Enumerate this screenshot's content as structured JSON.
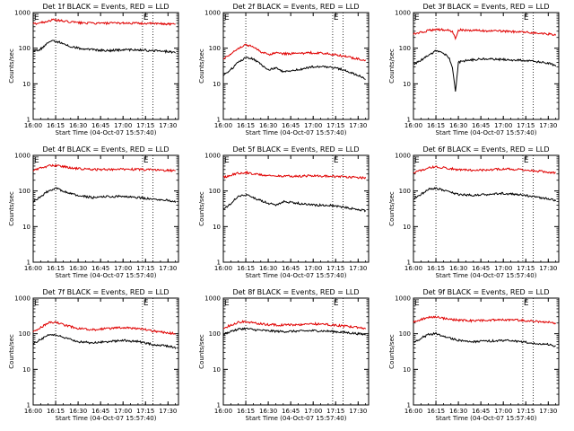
{
  "figure": {
    "background": "#ffffff",
    "colors": {
      "events": "#000000",
      "lld": "#e00000",
      "axis": "#000000"
    }
  },
  "chart_data": [
    {
      "type": "line",
      "title": "Det 1f BLACK = Events, RED = LLD",
      "xlabel": "Start Time (04-Oct-07 15:57:40)",
      "ylabel": "Counts/sec",
      "xlim": [
        "16:00",
        "17:37"
      ],
      "ylim": [
        1,
        1000
      ],
      "yscale": "log",
      "xticks": [
        "16:00",
        "16:15",
        "16:30",
        "16:45",
        "17:00",
        "17:15",
        "17:30"
      ],
      "yticks": [
        "1",
        "10",
        "100",
        "1000"
      ],
      "markers": [
        {
          "x": "16:00",
          "label": "E"
        },
        {
          "x": "16:15",
          "label": ""
        },
        {
          "x": "17:13",
          "label": "E"
        },
        {
          "x": "17:20",
          "label": ""
        }
      ],
      "series": [
        {
          "name": "LLD",
          "color": "#e00000",
          "x": [
            "16:00",
            "16:05",
            "16:10",
            "16:13",
            "16:17",
            "16:22",
            "16:30",
            "16:40",
            "16:50",
            "17:00",
            "17:10",
            "17:20",
            "17:30",
            "17:35"
          ],
          "y": [
            480,
            520,
            580,
            620,
            600,
            560,
            520,
            500,
            500,
            510,
            500,
            490,
            480,
            470
          ]
        },
        {
          "name": "Events",
          "color": "#000000",
          "x": [
            "16:00",
            "16:05",
            "16:10",
            "16:13",
            "16:17",
            "16:22",
            "16:30",
            "16:40",
            "16:50",
            "17:00",
            "17:10",
            "17:20",
            "17:30",
            "17:35"
          ],
          "y": [
            80,
            95,
            140,
            160,
            150,
            120,
            100,
            90,
            85,
            90,
            90,
            85,
            80,
            75
          ]
        }
      ]
    },
    {
      "type": "line",
      "title": "Det 2f BLACK = Events, RED = LLD",
      "xlabel": "Start Time (04-Oct-07 15:57:40)",
      "ylabel": "Counts/sec",
      "xlim": [
        "16:00",
        "17:37"
      ],
      "ylim": [
        1,
        1000
      ],
      "yscale": "log",
      "xticks": [
        "16:00",
        "16:15",
        "16:30",
        "16:45",
        "17:00",
        "17:15",
        "17:30"
      ],
      "yticks": [
        "1",
        "10",
        "100",
        "1000"
      ],
      "markers": [
        {
          "x": "16:00",
          "label": "E"
        },
        {
          "x": "16:15",
          "label": ""
        },
        {
          "x": "17:13",
          "label": "E"
        },
        {
          "x": "17:20",
          "label": ""
        }
      ],
      "series": [
        {
          "name": "LLD",
          "color": "#e00000",
          "x": [
            "16:00",
            "16:05",
            "16:10",
            "16:15",
            "16:20",
            "16:25",
            "16:30",
            "16:35",
            "16:40",
            "16:50",
            "17:00",
            "17:10",
            "17:20",
            "17:30",
            "17:35"
          ],
          "y": [
            50,
            70,
            100,
            125,
            110,
            80,
            65,
            75,
            70,
            70,
            75,
            70,
            60,
            50,
            45
          ]
        },
        {
          "name": "Events",
          "color": "#000000",
          "x": [
            "16:00",
            "16:05",
            "16:10",
            "16:15",
            "16:20",
            "16:25",
            "16:30",
            "16:35",
            "16:40",
            "16:50",
            "17:00",
            "17:10",
            "17:20",
            "17:30",
            "17:35"
          ],
          "y": [
            18,
            25,
            40,
            55,
            50,
            35,
            25,
            28,
            22,
            25,
            30,
            30,
            25,
            17,
            14
          ]
        }
      ]
    },
    {
      "type": "line",
      "title": "Det 3f BLACK = Events, RED = LLD",
      "xlabel": "Start Time (04-Oct-07 15:57:40)",
      "ylabel": "Counts/sec",
      "xlim": [
        "16:00",
        "17:37"
      ],
      "ylim": [
        1,
        1000
      ],
      "yscale": "log",
      "xticks": [
        "16:00",
        "16:15",
        "16:30",
        "16:45",
        "17:00",
        "17:15",
        "17:30"
      ],
      "yticks": [
        "1",
        "10",
        "100",
        "1000"
      ],
      "markers": [
        {
          "x": "16:00",
          "label": "E"
        },
        {
          "x": "16:15",
          "label": ""
        },
        {
          "x": "17:13",
          "label": "E"
        },
        {
          "x": "17:20",
          "label": ""
        }
      ],
      "series": [
        {
          "name": "LLD",
          "color": "#e00000",
          "x": [
            "16:00",
            "16:08",
            "16:15",
            "16:22",
            "16:26",
            "16:28",
            "16:30",
            "16:35",
            "16:45",
            "17:00",
            "17:15",
            "17:30",
            "17:35"
          ],
          "y": [
            250,
            300,
            340,
            320,
            300,
            180,
            330,
            320,
            310,
            300,
            280,
            250,
            240
          ]
        },
        {
          "name": "Events",
          "color": "#000000",
          "x": [
            "16:00",
            "16:08",
            "16:15",
            "16:20",
            "16:24",
            "16:26",
            "16:28",
            "16:30",
            "16:35",
            "16:45",
            "17:00",
            "17:15",
            "17:30",
            "17:35"
          ],
          "y": [
            35,
            55,
            85,
            75,
            50,
            30,
            6,
            40,
            45,
            50,
            48,
            45,
            38,
            32
          ]
        }
      ]
    },
    {
      "type": "line",
      "title": "Det 4f BLACK = Events, RED = LLD",
      "xlabel": "Start Time (04-Oct-07 15:57:40)",
      "ylabel": "Counts/sec",
      "xlim": [
        "16:00",
        "17:37"
      ],
      "ylim": [
        1,
        1000
      ],
      "yscale": "log",
      "xticks": [
        "16:00",
        "16:15",
        "16:30",
        "16:45",
        "17:00",
        "17:15",
        "17:30"
      ],
      "yticks": [
        "1",
        "10",
        "100",
        "1000"
      ],
      "markers": [
        {
          "x": "16:00",
          "label": "E"
        },
        {
          "x": "16:15",
          "label": ""
        },
        {
          "x": "17:13",
          "label": "E"
        },
        {
          "x": "17:20",
          "label": ""
        }
      ],
      "series": [
        {
          "name": "LLD",
          "color": "#e00000",
          "x": [
            "16:00",
            "16:05",
            "16:10",
            "16:15",
            "16:20",
            "16:30",
            "16:40",
            "16:50",
            "17:00",
            "17:10",
            "17:20",
            "17:30",
            "17:35"
          ],
          "y": [
            380,
            440,
            500,
            520,
            480,
            420,
            400,
            400,
            410,
            400,
            390,
            380,
            370
          ]
        },
        {
          "name": "Events",
          "color": "#000000",
          "x": [
            "16:00",
            "16:05",
            "16:10",
            "16:15",
            "16:20",
            "16:30",
            "16:40",
            "16:50",
            "17:00",
            "17:10",
            "17:20",
            "17:30",
            "17:35"
          ],
          "y": [
            50,
            70,
            100,
            120,
            100,
            75,
            65,
            70,
            70,
            65,
            60,
            55,
            50
          ]
        }
      ]
    },
    {
      "type": "line",
      "title": "Det 5f BLACK = Events, RED = LLD",
      "xlabel": "Start Time (04-Oct-07 15:57:40)",
      "ylabel": "Counts/sec",
      "xlim": [
        "16:00",
        "17:37"
      ],
      "ylim": [
        1,
        1000
      ],
      "yscale": "log",
      "xticks": [
        "16:00",
        "16:15",
        "16:30",
        "16:45",
        "17:00",
        "17:15",
        "17:30"
      ],
      "yticks": [
        "1",
        "10",
        "100",
        "1000"
      ],
      "markers": [
        {
          "x": "16:00",
          "label": "E"
        },
        {
          "x": "16:15",
          "label": ""
        },
        {
          "x": "17:13",
          "label": "E"
        },
        {
          "x": "17:20",
          "label": ""
        }
      ],
      "series": [
        {
          "name": "LLD",
          "color": "#e00000",
          "x": [
            "16:00",
            "16:05",
            "16:10",
            "16:15",
            "16:20",
            "16:30",
            "16:40",
            "16:50",
            "17:00",
            "17:10",
            "17:20",
            "17:30",
            "17:35"
          ],
          "y": [
            240,
            280,
            320,
            330,
            300,
            270,
            260,
            260,
            270,
            260,
            250,
            240,
            230
          ]
        },
        {
          "name": "Events",
          "color": "#000000",
          "x": [
            "16:00",
            "16:05",
            "16:10",
            "16:15",
            "16:20",
            "16:30",
            "16:35",
            "16:40",
            "16:50",
            "17:00",
            "17:10",
            "17:20",
            "17:30",
            "17:35"
          ],
          "y": [
            30,
            45,
            70,
            80,
            65,
            45,
            40,
            50,
            45,
            40,
            40,
            35,
            30,
            28
          ]
        }
      ]
    },
    {
      "type": "line",
      "title": "Det 6f BLACK = Events, RED = LLD",
      "xlabel": "Start Time (04-Oct-07 15:57:40)",
      "ylabel": "Counts/sec",
      "xlim": [
        "16:00",
        "17:37"
      ],
      "ylim": [
        1,
        1000
      ],
      "yscale": "log",
      "xticks": [
        "16:00",
        "16:15",
        "16:30",
        "16:45",
        "17:00",
        "17:15",
        "17:30"
      ],
      "yticks": [
        "1",
        "10",
        "100",
        "1000"
      ],
      "markers": [
        {
          "x": "16:00",
          "label": "E"
        },
        {
          "x": "16:15",
          "label": ""
        },
        {
          "x": "17:13",
          "label": "E"
        },
        {
          "x": "17:20",
          "label": ""
        }
      ],
      "series": [
        {
          "name": "LLD",
          "color": "#e00000",
          "x": [
            "16:00",
            "16:05",
            "16:10",
            "16:15",
            "16:20",
            "16:30",
            "16:40",
            "16:50",
            "17:00",
            "17:10",
            "17:20",
            "17:30",
            "17:35"
          ],
          "y": [
            320,
            380,
            450,
            480,
            450,
            400,
            380,
            390,
            420,
            400,
            370,
            340,
            320
          ]
        },
        {
          "name": "Events",
          "color": "#000000",
          "x": [
            "16:00",
            "16:05",
            "16:10",
            "16:15",
            "16:20",
            "16:30",
            "16:40",
            "16:50",
            "17:00",
            "17:10",
            "17:20",
            "17:30",
            "17:35"
          ],
          "y": [
            60,
            80,
            110,
            120,
            105,
            80,
            75,
            80,
            85,
            80,
            70,
            60,
            55
          ]
        }
      ]
    },
    {
      "type": "line",
      "title": "Det 7f BLACK = Events, RED = LLD",
      "xlabel": "Start Time (04-Oct-07 15:57:40)",
      "ylabel": "Counts/sec",
      "xlim": [
        "16:00",
        "17:37"
      ],
      "ylim": [
        1,
        1000
      ],
      "yscale": "log",
      "xticks": [
        "16:00",
        "16:15",
        "16:30",
        "16:45",
        "17:00",
        "17:15",
        "17:30"
      ],
      "yticks": [
        "1",
        "10",
        "100",
        "1000"
      ],
      "markers": [
        {
          "x": "16:00",
          "label": "E"
        },
        {
          "x": "16:15",
          "label": ""
        },
        {
          "x": "17:13",
          "label": "E"
        },
        {
          "x": "17:20",
          "label": ""
        }
      ],
      "series": [
        {
          "name": "LLD",
          "color": "#e00000",
          "x": [
            "16:00",
            "16:05",
            "16:10",
            "16:15",
            "16:20",
            "16:30",
            "16:40",
            "16:50",
            "17:00",
            "17:10",
            "17:20",
            "17:30",
            "17:35"
          ],
          "y": [
            110,
            150,
            200,
            210,
            180,
            140,
            130,
            140,
            150,
            140,
            120,
            105,
            100
          ]
        },
        {
          "name": "Events",
          "color": "#000000",
          "x": [
            "16:00",
            "16:05",
            "16:10",
            "16:15",
            "16:20",
            "16:30",
            "16:40",
            "16:50",
            "17:00",
            "17:10",
            "17:20",
            "17:30",
            "17:35"
          ],
          "y": [
            50,
            70,
            90,
            95,
            80,
            60,
            55,
            60,
            65,
            60,
            50,
            45,
            40
          ]
        }
      ]
    },
    {
      "type": "line",
      "title": "Det 8f BLACK = Events, RED = LLD",
      "xlabel": "Start Time (04-Oct-07 15:57:40)",
      "ylabel": "Counts/sec",
      "xlim": [
        "16:00",
        "17:37"
      ],
      "ylim": [
        1,
        1000
      ],
      "yscale": "log",
      "xticks": [
        "16:00",
        "16:15",
        "16:30",
        "16:45",
        "17:00",
        "17:15",
        "17:30"
      ],
      "yticks": [
        "1",
        "10",
        "100",
        "1000"
      ],
      "markers": [
        {
          "x": "16:00",
          "label": "E"
        },
        {
          "x": "16:15",
          "label": ""
        },
        {
          "x": "17:13",
          "label": "E"
        },
        {
          "x": "17:20",
          "label": ""
        }
      ],
      "series": [
        {
          "name": "LLD",
          "color": "#e00000",
          "x": [
            "16:00",
            "16:05",
            "16:10",
            "16:15",
            "16:20",
            "16:30",
            "16:40",
            "16:50",
            "17:00",
            "17:10",
            "17:20",
            "17:30",
            "17:35"
          ],
          "y": [
            140,
            175,
            210,
            220,
            200,
            180,
            175,
            180,
            190,
            180,
            165,
            150,
            140
          ]
        },
        {
          "name": "Events",
          "color": "#000000",
          "x": [
            "16:00",
            "16:05",
            "16:10",
            "16:15",
            "16:20",
            "16:30",
            "16:40",
            "16:50",
            "17:00",
            "17:10",
            "17:20",
            "17:30",
            "17:35"
          ],
          "y": [
            95,
            115,
            135,
            140,
            130,
            120,
            115,
            118,
            122,
            118,
            110,
            100,
            95
          ]
        }
      ]
    },
    {
      "type": "line",
      "title": "Det 9f BLACK = Events, RED = LLD",
      "xlabel": "Start Time (04-Oct-07 15:57:40)",
      "ylabel": "Counts/sec",
      "xlim": [
        "16:00",
        "17:37"
      ],
      "ylim": [
        1,
        1000
      ],
      "yscale": "log",
      "xticks": [
        "16:00",
        "16:15",
        "16:30",
        "16:45",
        "17:00",
        "17:15",
        "17:30"
      ],
      "yticks": [
        "1",
        "10",
        "100",
        "1000"
      ],
      "markers": [
        {
          "x": "16:00",
          "label": "E"
        },
        {
          "x": "16:15",
          "label": ""
        },
        {
          "x": "17:13",
          "label": "E"
        },
        {
          "x": "17:20",
          "label": ""
        }
      ],
      "series": [
        {
          "name": "LLD",
          "color": "#e00000",
          "x": [
            "16:00",
            "16:05",
            "16:10",
            "16:15",
            "16:20",
            "16:30",
            "16:40",
            "16:50",
            "17:00",
            "17:10",
            "17:20",
            "17:30",
            "17:35"
          ],
          "y": [
            210,
            250,
            290,
            300,
            270,
            240,
            230,
            240,
            250,
            240,
            225,
            210,
            200
          ]
        },
        {
          "name": "Events",
          "color": "#000000",
          "x": [
            "16:00",
            "16:05",
            "16:10",
            "16:15",
            "16:20",
            "16:30",
            "16:40",
            "16:50",
            "17:00",
            "17:10",
            "17:20",
            "17:30",
            "17:35"
          ],
          "y": [
            55,
            75,
            95,
            100,
            85,
            65,
            60,
            62,
            65,
            60,
            55,
            50,
            45
          ]
        }
      ]
    }
  ]
}
